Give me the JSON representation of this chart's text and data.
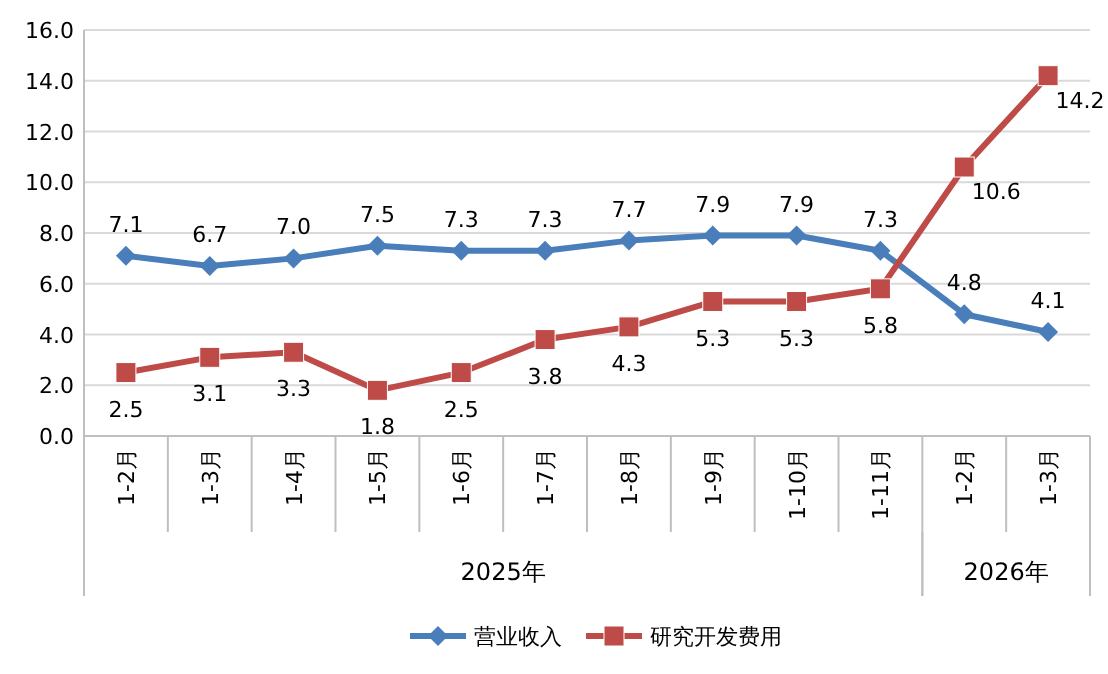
{
  "chart_data": {
    "type": "line",
    "categories": [
      "1-2月",
      "1-3月",
      "1-4月",
      "1-5月",
      "1-6月",
      "1-7月",
      "1-8月",
      "1-9月",
      "1-10月",
      "1-11月",
      "1-2月",
      "1-3月"
    ],
    "series": [
      {
        "name": "营业收入",
        "color": "#4a7ebb",
        "marker": "diamond",
        "values": [
          7.1,
          6.7,
          7.0,
          7.5,
          7.3,
          7.3,
          7.7,
          7.9,
          7.9,
          7.3,
          4.8,
          4.1
        ],
        "value_labels": [
          "7.1",
          "6.7",
          "7.0",
          "7.5",
          "7.3",
          "7.3",
          "7.7",
          "7.9",
          "7.9",
          "7.3",
          "4.8",
          "4.1"
        ]
      },
      {
        "name": "研究开发费用",
        "color": "#be4b48",
        "marker": "square",
        "values": [
          2.5,
          3.1,
          3.3,
          1.8,
          2.5,
          3.8,
          4.3,
          5.3,
          5.3,
          5.8,
          10.6,
          14.2
        ],
        "value_labels": [
          "2.5",
          "3.1",
          "3.3",
          "1.8",
          "2.5",
          "3.8",
          "4.3",
          "5.3",
          "5.3",
          "5.8",
          "10.6",
          "14.2"
        ]
      }
    ],
    "ylim": [
      0,
      16
    ],
    "yticks": [
      {
        "value": 0,
        "label": "0.0"
      },
      {
        "value": 2,
        "label": "2.0"
      },
      {
        "value": 4,
        "label": "4.0"
      },
      {
        "value": 6,
        "label": "6.0"
      },
      {
        "value": 8,
        "label": "8.0"
      },
      {
        "value": 10,
        "label": "10.0"
      },
      {
        "value": 12,
        "label": "12.0"
      },
      {
        "value": 14,
        "label": "14.0"
      },
      {
        "value": 16,
        "label": "16.0"
      }
    ],
    "grid": "y",
    "legend": "bottom",
    "annotations": [
      "2025年",
      "2026年"
    ]
  }
}
